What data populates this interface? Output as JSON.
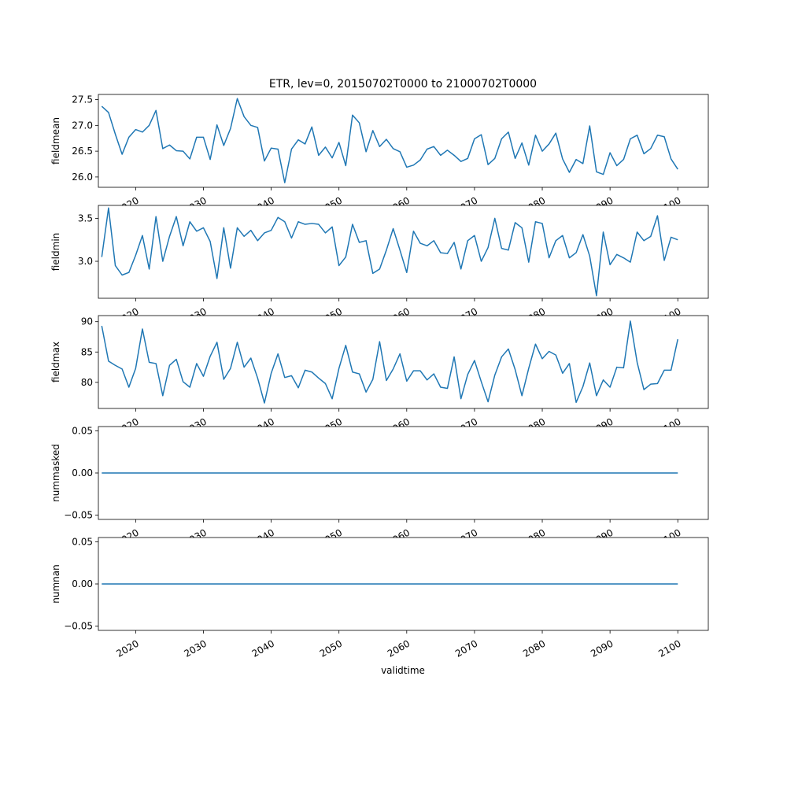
{
  "title": "ETR, lev=0, 20150702T0000 to 21000702T0000",
  "xlabel": "validtime",
  "line_color": "#1f77b4",
  "x_tick_labels": [
    "2020",
    "2030",
    "2040",
    "2050",
    "2060",
    "2070",
    "2080",
    "2090",
    "2100"
  ],
  "chart_data": [
    {
      "type": "line",
      "ylabel": "fieldmean",
      "xlim": [
        2014.5,
        2104.5
      ],
      "ylim": [
        25.8,
        27.6
      ],
      "yticks": [
        26.0,
        26.5,
        27.0,
        27.5
      ],
      "ytick_labels": [
        "26.0",
        "26.5",
        "27.0",
        "27.5"
      ],
      "x": [
        2015,
        2016,
        2017,
        2018,
        2019,
        2020,
        2021,
        2022,
        2023,
        2024,
        2025,
        2026,
        2027,
        2028,
        2029,
        2030,
        2031,
        2032,
        2033,
        2034,
        2035,
        2036,
        2037,
        2038,
        2039,
        2040,
        2041,
        2042,
        2043,
        2044,
        2045,
        2046,
        2047,
        2048,
        2049,
        2050,
        2051,
        2052,
        2053,
        2054,
        2055,
        2056,
        2057,
        2058,
        2059,
        2060,
        2061,
        2062,
        2063,
        2064,
        2065,
        2066,
        2067,
        2068,
        2069,
        2070,
        2071,
        2072,
        2073,
        2074,
        2075,
        2076,
        2077,
        2078,
        2079,
        2080,
        2081,
        2082,
        2083,
        2084,
        2085,
        2086,
        2087,
        2088,
        2089,
        2090,
        2091,
        2092,
        2093,
        2094,
        2095,
        2096,
        2097,
        2098,
        2099,
        2100
      ],
      "values": [
        27.37,
        27.25,
        26.83,
        26.44,
        26.77,
        26.92,
        26.87,
        27.0,
        27.29,
        26.55,
        26.62,
        26.51,
        26.5,
        26.35,
        26.77,
        26.77,
        26.34,
        27.01,
        26.61,
        26.94,
        27.52,
        27.17,
        27.0,
        26.96,
        26.31,
        26.56,
        26.54,
        25.89,
        26.54,
        26.72,
        26.64,
        26.97,
        26.42,
        26.58,
        26.37,
        26.67,
        26.22,
        27.2,
        27.05,
        26.49,
        26.9,
        26.59,
        26.73,
        26.55,
        26.49,
        26.19,
        26.23,
        26.33,
        26.54,
        26.59,
        26.42,
        26.52,
        26.42,
        26.3,
        26.36,
        26.74,
        26.82,
        26.24,
        26.36,
        26.74,
        26.87,
        26.36,
        26.66,
        26.23,
        26.81,
        26.5,
        26.64,
        26.85,
        26.35,
        26.09,
        26.34,
        26.26,
        26.99,
        26.1,
        26.05,
        26.47,
        26.22,
        26.34,
        26.74,
        26.81,
        26.45,
        26.55,
        26.81,
        26.78,
        26.35,
        26.15
      ]
    },
    {
      "type": "line",
      "ylabel": "fieldmin",
      "xlim": [
        2014.5,
        2104.5
      ],
      "ylim": [
        2.57,
        3.65
      ],
      "yticks": [
        3.0,
        3.5
      ],
      "ytick_labels": [
        "3.0",
        "3.5"
      ],
      "x": [
        2015,
        2016,
        2017,
        2018,
        2019,
        2020,
        2021,
        2022,
        2023,
        2024,
        2025,
        2026,
        2027,
        2028,
        2029,
        2030,
        2031,
        2032,
        2033,
        2034,
        2035,
        2036,
        2037,
        2038,
        2039,
        2040,
        2041,
        2042,
        2043,
        2044,
        2045,
        2046,
        2047,
        2048,
        2049,
        2050,
        2051,
        2052,
        2053,
        2054,
        2055,
        2056,
        2057,
        2058,
        2059,
        2060,
        2061,
        2062,
        2063,
        2064,
        2065,
        2066,
        2067,
        2068,
        2069,
        2070,
        2071,
        2072,
        2073,
        2074,
        2075,
        2076,
        2077,
        2078,
        2079,
        2080,
        2081,
        2082,
        2083,
        2084,
        2085,
        2086,
        2087,
        2088,
        2089,
        2090,
        2091,
        2092,
        2093,
        2094,
        2095,
        2096,
        2097,
        2098,
        2099,
        2100
      ],
      "values": [
        3.05,
        3.62,
        2.95,
        2.84,
        2.87,
        3.07,
        3.3,
        2.91,
        3.52,
        3.0,
        3.29,
        3.52,
        3.18,
        3.46,
        3.35,
        3.39,
        3.23,
        2.8,
        3.39,
        2.92,
        3.39,
        3.29,
        3.36,
        3.24,
        3.33,
        3.36,
        3.51,
        3.46,
        3.27,
        3.46,
        3.43,
        3.44,
        3.43,
        3.33,
        3.4,
        2.95,
        3.05,
        3.43,
        3.22,
        3.24,
        2.86,
        2.91,
        3.13,
        3.38,
        3.13,
        2.87,
        3.35,
        3.21,
        3.18,
        3.24,
        3.1,
        3.09,
        3.22,
        2.91,
        3.24,
        3.3,
        3.0,
        3.16,
        3.5,
        3.15,
        3.13,
        3.45,
        3.39,
        2.99,
        3.46,
        3.44,
        3.04,
        3.24,
        3.3,
        3.04,
        3.1,
        3.31,
        3.06,
        2.6,
        3.34,
        2.96,
        3.08,
        3.04,
        2.99,
        3.34,
        3.24,
        3.29,
        3.53,
        3.01,
        3.28,
        3.25
      ]
    },
    {
      "type": "line",
      "ylabel": "fieldmax",
      "xlim": [
        2014.5,
        2104.5
      ],
      "ylim": [
        75.7,
        91.0
      ],
      "yticks": [
        80,
        85,
        90
      ],
      "ytick_labels": [
        "80",
        "85",
        "90"
      ],
      "x": [
        2015,
        2016,
        2017,
        2018,
        2019,
        2020,
        2021,
        2022,
        2023,
        2024,
        2025,
        2026,
        2027,
        2028,
        2029,
        2030,
        2031,
        2032,
        2033,
        2034,
        2035,
        2036,
        2037,
        2038,
        2039,
        2040,
        2041,
        2042,
        2043,
        2044,
        2045,
        2046,
        2047,
        2048,
        2049,
        2050,
        2051,
        2052,
        2053,
        2054,
        2055,
        2056,
        2057,
        2058,
        2059,
        2060,
        2061,
        2062,
        2063,
        2064,
        2065,
        2066,
        2067,
        2068,
        2069,
        2070,
        2071,
        2072,
        2073,
        2074,
        2075,
        2076,
        2077,
        2078,
        2079,
        2080,
        2081,
        2082,
        2083,
        2084,
        2085,
        2086,
        2087,
        2088,
        2089,
        2090,
        2091,
        2092,
        2093,
        2094,
        2095,
        2096,
        2097,
        2098,
        2099,
        2100
      ],
      "values": [
        89.3,
        83.5,
        82.8,
        82.2,
        79.2,
        82.3,
        88.8,
        83.3,
        83.1,
        77.8,
        82.8,
        83.8,
        80.1,
        79.2,
        83.1,
        81.0,
        84.3,
        86.6,
        80.5,
        82.3,
        86.6,
        82.5,
        84.0,
        80.7,
        76.6,
        81.5,
        84.7,
        80.8,
        81.1,
        79.1,
        82.0,
        81.7,
        80.7,
        79.8,
        77.3,
        82.3,
        86.1,
        81.7,
        81.4,
        78.4,
        80.5,
        86.7,
        80.3,
        82.2,
        84.7,
        80.2,
        81.9,
        81.9,
        80.4,
        81.4,
        79.2,
        79.0,
        84.2,
        77.3,
        81.3,
        83.6,
        80.1,
        76.8,
        81.2,
        84.2,
        85.5,
        82.1,
        77.8,
        82.3,
        86.3,
        83.9,
        85.1,
        84.5,
        81.5,
        83.1,
        76.7,
        79.3,
        83.2,
        77.8,
        80.4,
        79.2,
        82.5,
        82.4,
        90.1,
        83.3,
        78.8,
        79.7,
        79.8,
        82.0,
        82.0,
        87.1
      ]
    },
    {
      "type": "line",
      "ylabel": "nummasked",
      "xlim": [
        2014.5,
        2104.5
      ],
      "ylim": [
        -0.055,
        0.055
      ],
      "yticks": [
        -0.05,
        0.0,
        0.05
      ],
      "ytick_labels": [
        "−0.05",
        "0.00",
        "0.05"
      ],
      "x": [
        2015,
        2100
      ],
      "values": [
        0,
        0
      ]
    },
    {
      "type": "line",
      "ylabel": "numnan",
      "xlim": [
        2014.5,
        2104.5
      ],
      "ylim": [
        -0.055,
        0.055
      ],
      "yticks": [
        -0.05,
        0.0,
        0.05
      ],
      "ytick_labels": [
        "−0.05",
        "0.00",
        "0.05"
      ],
      "x": [
        2015,
        2100
      ],
      "values": [
        0,
        0
      ]
    }
  ]
}
